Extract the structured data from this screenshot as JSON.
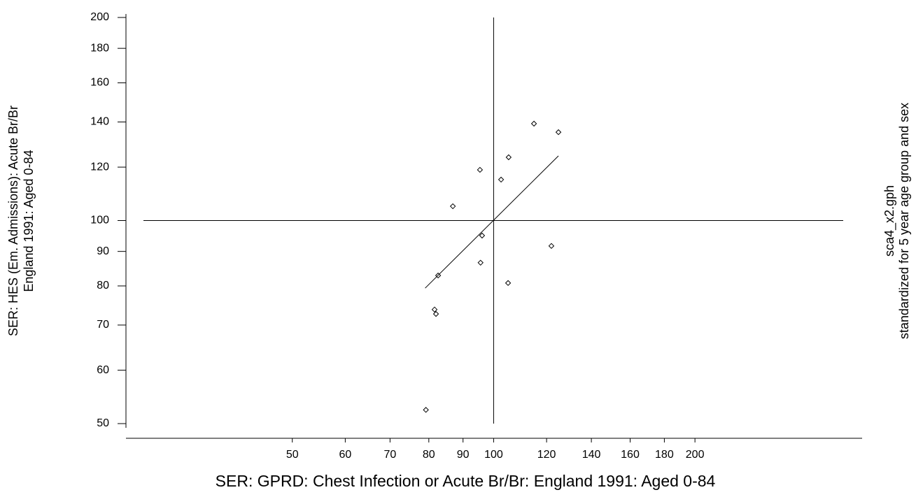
{
  "chart_data": {
    "type": "scatter",
    "x_label": "SER: GPRD: Chest Infection or Acute Br/Br: England 1991: Aged 0-84",
    "y_label": [
      "SER: HES (Em. Admissions): Acute Br/Br",
      "England 1991: Aged 0-84"
    ],
    "side_note": [
      "sca4_x2.gph",
      "standardized for 5 year age group and sex"
    ],
    "log_x": true,
    "log_y": true,
    "xlim": [
      28.2,
      355.6
    ],
    "ylim": [
      50,
      200
    ],
    "xticks": [
      50,
      60,
      70,
      80,
      90,
      100,
      120,
      140,
      160,
      180,
      200
    ],
    "yticks": [
      50,
      60,
      70,
      80,
      90,
      100,
      120,
      140,
      160,
      180,
      200
    ],
    "reference_lines": {
      "x": 100,
      "y": 100
    },
    "points": {
      "x": [
        114.9,
        125.0,
        105.3,
        95.4,
        102.6,
        86.9,
        96.1,
        122.0,
        95.6,
        82.6,
        105.1,
        81.6,
        82.0,
        79.2
      ],
      "y": [
        139.2,
        135.2,
        124.1,
        118.9,
        115.0,
        105.0,
        95.0,
        91.7,
        86.6,
        82.9,
        80.8,
        73.8,
        72.7,
        52.4
      ]
    },
    "fit_line": {
      "x": [
        79,
        125
      ],
      "y": [
        79.4,
        124.7
      ]
    }
  }
}
